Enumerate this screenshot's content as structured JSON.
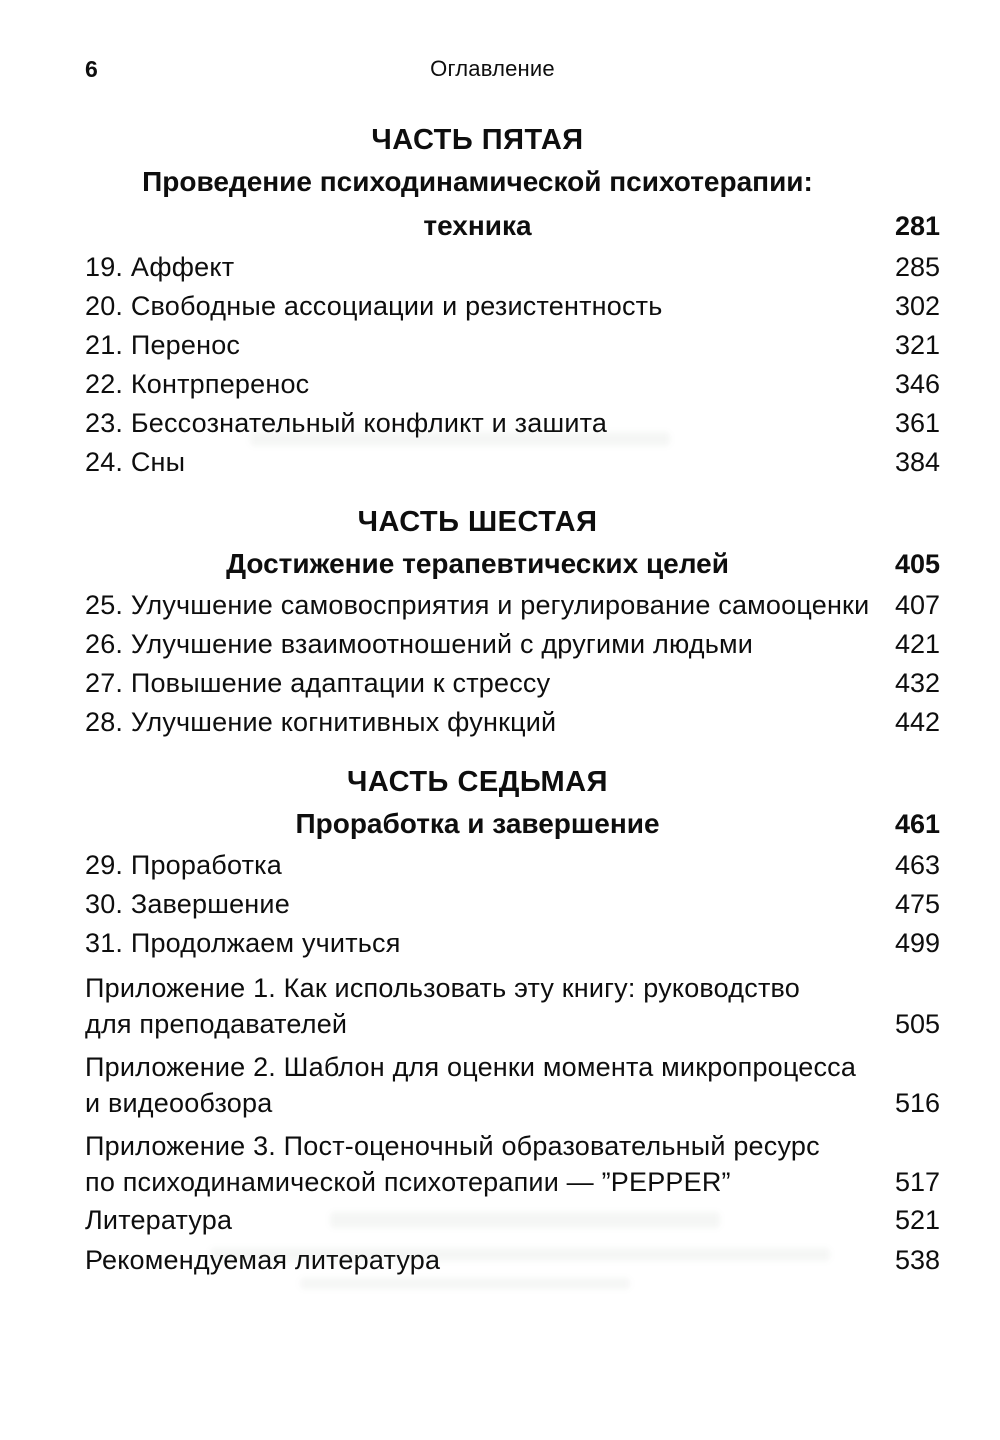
{
  "page": {
    "number": "6",
    "header": "Оглавление"
  },
  "toc": {
    "sections": [
      {
        "part": "ЧАСТЬ ПЯТАЯ",
        "subtitle": "Проведение психодинамической психотерапии: техника",
        "subtitle_page": "281",
        "items": [
          {
            "label": "19. Аффект",
            "page": "285"
          },
          {
            "label": "20. Свободные ассоциации и резистентность",
            "page": "302"
          },
          {
            "label": "21. Перенос",
            "page": "321"
          },
          {
            "label": "22. Контрперенос",
            "page": "346"
          },
          {
            "label": "23. Бессознательный конфликт и зашита",
            "page": "361"
          },
          {
            "label": "24. Сны",
            "page": "384"
          }
        ]
      },
      {
        "part": "ЧАСТЬ ШЕСТАЯ",
        "subtitle": "Достижение терапевтических целей",
        "subtitle_page": "405",
        "items": [
          {
            "label": "25. Улучшение самовосприятия и регулирование самооценки",
            "page": "407"
          },
          {
            "label": "26. Улучшение взаимоотношений с другими людьми",
            "page": "421"
          },
          {
            "label": "27. Повышение адаптации к стрессу",
            "page": "432"
          },
          {
            "label": "28. Улучшение когнитивных функций",
            "page": "442"
          }
        ]
      },
      {
        "part": "ЧАСТЬ СЕДЬМАЯ",
        "subtitle": "Проработка и завершение",
        "subtitle_page": "461",
        "items": [
          {
            "label": "29. Проработка",
            "page": "463"
          },
          {
            "label": "30. Завершение",
            "page": "475"
          },
          {
            "label": "31. Продолжаем учиться",
            "page": "499"
          }
        ]
      }
    ],
    "back_matter": [
      {
        "label": "Приложение 1. Как использовать эту книгу: руководство\nдля преподавателей",
        "page": "505"
      },
      {
        "label": "Приложение 2. Шаблон для оценки момента микропроцесса\nи видеообзора",
        "page": "516"
      },
      {
        "label": "Приложение 3. Пост-оценочный образовательный ресурс\nпо психодинамической психотерапии — ”PEPPER”",
        "page": "517"
      },
      {
        "label": "Литература",
        "page": "521"
      },
      {
        "label": "Рекомендуемая литература",
        "page": "538"
      }
    ]
  }
}
